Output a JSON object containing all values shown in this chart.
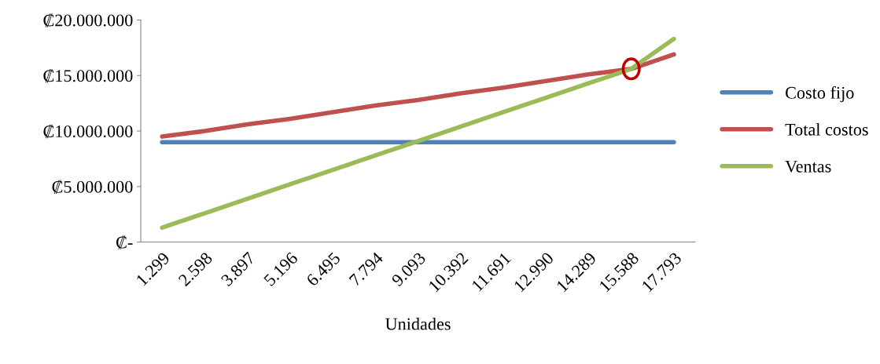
{
  "chart_data": {
    "type": "line",
    "xlabel": "Unidades",
    "categories": [
      "1.299",
      "2.598",
      "3.897",
      "5.196",
      "6.495",
      "7.794",
      "9.093",
      "10.392",
      "11.691",
      "12.990",
      "14.289",
      "15.588",
      "17.793"
    ],
    "series": [
      {
        "name": "Costo fijo",
        "color": "#4f81bd",
        "values": [
          9000000,
          9000000,
          9000000,
          9000000,
          9000000,
          9000000,
          9000000,
          9000000,
          9000000,
          9000000,
          9000000,
          9000000,
          9000000
        ]
      },
      {
        "name": "Total costos",
        "color": "#c0504d",
        "values": [
          9500000,
          10000000,
          10600000,
          11100000,
          11700000,
          12300000,
          12800000,
          13400000,
          13900000,
          14500000,
          15100000,
          15600000,
          16900000
        ]
      },
      {
        "name": "Ventas",
        "color": "#9bbb59",
        "values": [
          1300000,
          2600000,
          3900000,
          5200000,
          6500000,
          7800000,
          9100000,
          10400000,
          11700000,
          13000000,
          14300000,
          15600000,
          18300000
        ]
      }
    ],
    "ylim": [
      0,
      20000000
    ],
    "yticks": [
      {
        "value": 0,
        "label": "₡-"
      },
      {
        "value": 5000000,
        "label": "₡5.000.000"
      },
      {
        "value": 10000000,
        "label": "₡10.000.000"
      },
      {
        "value": 15000000,
        "label": "₡15.000.000"
      },
      {
        "value": 20000000,
        "label": "₡20.000.000"
      }
    ],
    "grid": false,
    "legend": "right",
    "marker": "none",
    "line_style": "solid"
  }
}
